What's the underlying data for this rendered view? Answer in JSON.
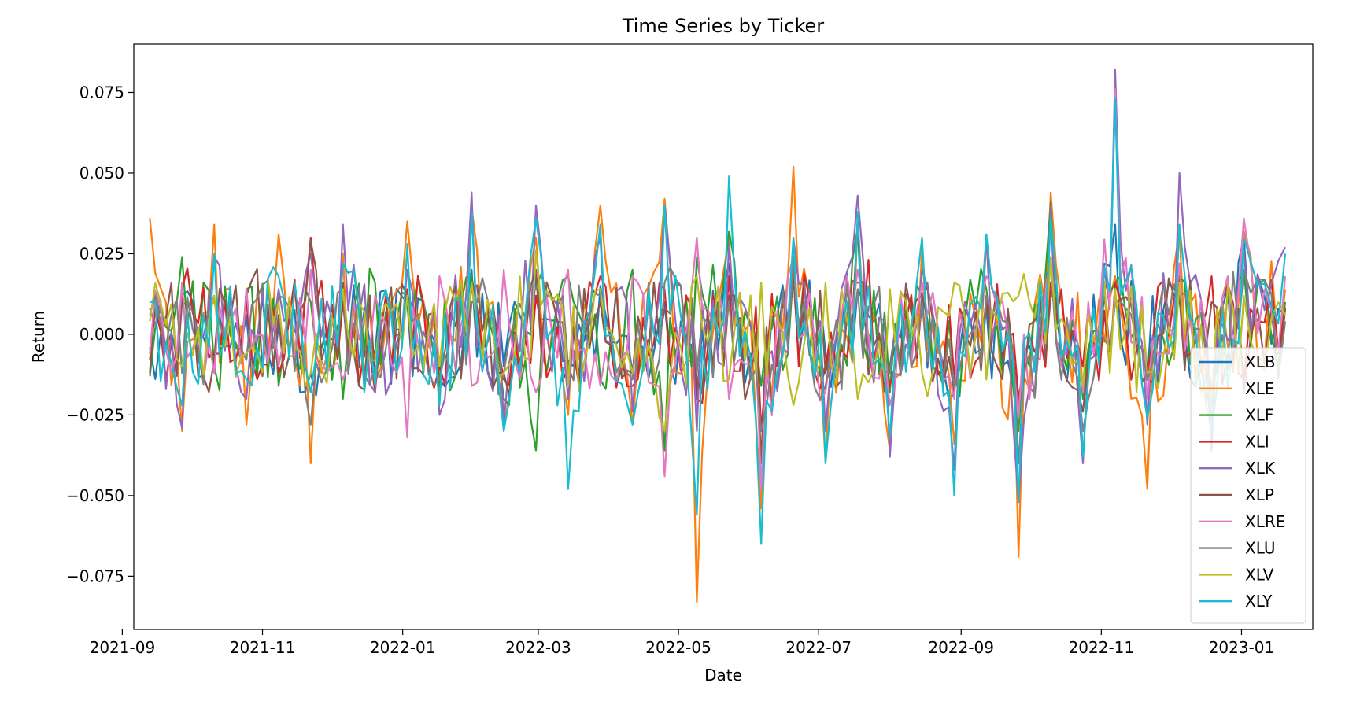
{
  "chart_data": {
    "type": "line",
    "title": "Time Series by Ticker",
    "xlabel": "Date",
    "ylabel": "Return",
    "xlim": [
      "2021-09-06",
      "2023-02-01"
    ],
    "ylim": [
      -0.0915,
      0.09
    ],
    "x_ticks": [
      "2021-09-01",
      "2021-11-01",
      "2022-01-01",
      "2022-03-01",
      "2022-05-01",
      "2022-07-01",
      "2022-09-01",
      "2022-11-01",
      "2023-01-01"
    ],
    "x_tick_labels": [
      "2021-09",
      "2021-11",
      "2022-01",
      "2022-03",
      "2022-05",
      "2022-07",
      "2022-09",
      "2022-11",
      "2023-01"
    ],
    "y_ticks": [
      -0.075,
      -0.05,
      -0.025,
      0.0,
      0.025,
      0.05,
      0.075
    ],
    "y_tick_labels": [
      "−0.075",
      "−0.050",
      "−0.025",
      "0.000",
      "0.025",
      "0.050",
      "0.075"
    ],
    "grid": false,
    "legend_position": "center-right",
    "x": [
      "2021-09-13",
      "2021-09-27",
      "2021-10-11",
      "2021-10-25",
      "2021-11-08",
      "2021-11-22",
      "2021-12-06",
      "2021-12-20",
      "2022-01-03",
      "2022-01-17",
      "2022-01-31",
      "2022-02-14",
      "2022-02-28",
      "2022-03-14",
      "2022-03-28",
      "2022-04-11",
      "2022-04-25",
      "2022-05-09",
      "2022-05-23",
      "2022-06-06",
      "2022-06-20",
      "2022-07-04",
      "2022-07-18",
      "2022-08-01",
      "2022-08-15",
      "2022-08-29",
      "2022-09-12",
      "2022-09-26",
      "2022-10-10",
      "2022-10-24",
      "2022-11-07",
      "2022-11-21",
      "2022-12-05",
      "2022-12-19",
      "2023-01-02",
      "2023-01-20"
    ],
    "series": [
      {
        "name": "XLB",
        "color": "#1f77b4",
        "values": [
          -0.004,
          0.012,
          -0.008,
          0.006,
          0.003,
          -0.012,
          0.015,
          -0.006,
          0.01,
          -0.014,
          0.02,
          -0.01,
          0.018,
          -0.008,
          0.015,
          -0.012,
          0.01,
          -0.02,
          0.022,
          -0.03,
          0.018,
          -0.006,
          0.014,
          -0.01,
          0.012,
          -0.018,
          0.008,
          -0.022,
          0.016,
          -0.01,
          0.034,
          -0.014,
          0.01,
          -0.016,
          0.03,
          0.006
        ]
      },
      {
        "name": "XLE",
        "color": "#ff7f0e",
        "values": [
          0.036,
          -0.03,
          0.034,
          -0.028,
          0.031,
          -0.04,
          0.025,
          -0.015,
          0.035,
          -0.02,
          0.039,
          -0.03,
          0.03,
          -0.025,
          0.04,
          -0.028,
          0.042,
          -0.083,
          0.03,
          -0.054,
          0.052,
          -0.04,
          0.036,
          -0.036,
          0.028,
          -0.034,
          0.03,
          -0.069,
          0.044,
          -0.02,
          0.018,
          -0.048,
          0.032,
          -0.03,
          0.032,
          0.014
        ]
      },
      {
        "name": "XLF",
        "color": "#2ca02c",
        "values": [
          -0.013,
          0.024,
          -0.01,
          0.014,
          -0.016,
          0.01,
          -0.02,
          0.016,
          0.012,
          -0.016,
          0.018,
          -0.02,
          -0.036,
          0.018,
          -0.014,
          0.02,
          -0.036,
          0.024,
          0.032,
          -0.016,
          0.02,
          -0.01,
          0.033,
          -0.018,
          0.012,
          -0.012,
          0.014,
          -0.03,
          0.041,
          -0.02,
          0.016,
          -0.012,
          0.018,
          -0.026,
          0.02,
          0.01
        ]
      },
      {
        "name": "XLI",
        "color": "#d62728",
        "values": [
          -0.008,
          0.014,
          -0.006,
          0.01,
          -0.012,
          0.03,
          0.01,
          -0.018,
          0.014,
          -0.01,
          0.016,
          -0.014,
          0.012,
          -0.01,
          0.018,
          -0.016,
          0.014,
          -0.02,
          0.018,
          -0.03,
          0.022,
          -0.01,
          0.035,
          -0.016,
          0.01,
          -0.014,
          0.012,
          -0.02,
          0.016,
          -0.01,
          0.016,
          -0.012,
          0.018,
          0.018,
          -0.014,
          0.008
        ]
      },
      {
        "name": "XLK",
        "color": "#9467bd",
        "values": [
          0.008,
          -0.029,
          0.024,
          -0.02,
          0.014,
          0.025,
          0.034,
          -0.018,
          0.02,
          -0.025,
          0.044,
          -0.028,
          0.04,
          -0.02,
          0.03,
          -0.024,
          0.04,
          -0.03,
          0.028,
          -0.04,
          0.03,
          -0.03,
          0.043,
          -0.038,
          0.02,
          -0.042,
          0.031,
          -0.052,
          0.04,
          -0.04,
          0.082,
          -0.028,
          0.05,
          -0.036,
          0.026,
          0.027
        ]
      },
      {
        "name": "XLP",
        "color": "#8c564b",
        "values": [
          -0.012,
          0.01,
          -0.008,
          0.012,
          0.006,
          0.029,
          0.016,
          -0.014,
          0.012,
          -0.01,
          0.014,
          -0.012,
          0.02,
          -0.014,
          0.01,
          -0.012,
          0.008,
          -0.014,
          0.012,
          -0.04,
          0.018,
          -0.012,
          0.016,
          -0.01,
          0.012,
          -0.018,
          0.01,
          -0.022,
          0.012,
          -0.024,
          0.01,
          -0.014,
          0.012,
          0.01,
          -0.018,
          0.008
        ]
      },
      {
        "name": "XLRE",
        "color": "#e377c2",
        "values": [
          -0.006,
          0.016,
          -0.012,
          0.014,
          -0.01,
          0.02,
          -0.014,
          0.012,
          -0.032,
          0.018,
          -0.016,
          0.02,
          -0.018,
          0.02,
          -0.016,
          0.018,
          -0.044,
          0.03,
          -0.02,
          -0.048,
          0.024,
          -0.018,
          0.02,
          -0.022,
          0.016,
          -0.02,
          0.018,
          -0.026,
          0.024,
          -0.018,
          0.076,
          -0.02,
          0.022,
          -0.024,
          0.036,
          0.018
        ]
      },
      {
        "name": "XLU",
        "color": "#7f7f7f",
        "values": [
          0.006,
          -0.012,
          0.01,
          -0.008,
          0.012,
          -0.028,
          0.014,
          -0.01,
          0.012,
          -0.014,
          0.01,
          -0.012,
          0.014,
          -0.01,
          0.012,
          -0.014,
          0.016,
          -0.012,
          0.01,
          -0.03,
          0.024,
          -0.016,
          0.014,
          -0.012,
          0.01,
          -0.016,
          0.012,
          -0.04,
          0.022,
          -0.03,
          0.01,
          -0.014,
          0.012,
          -0.018,
          0.02,
          0.004
        ]
      },
      {
        "name": "XLV",
        "color": "#bcbd22",
        "values": [
          0.004,
          -0.01,
          0.012,
          -0.006,
          0.01,
          -0.012,
          0.014,
          -0.008,
          0.012,
          -0.01,
          0.016,
          -0.012,
          0.026,
          -0.016,
          0.014,
          -0.012,
          -0.03,
          0.018,
          -0.014,
          0.016,
          -0.022,
          0.016,
          -0.02,
          0.014,
          -0.012,
          0.016,
          -0.014,
          0.012,
          0.024,
          -0.016,
          0.014,
          -0.012,
          0.016,
          -0.02,
          0.012,
          0.006
        ]
      },
      {
        "name": "XLY",
        "color": "#17becf",
        "values": [
          0.01,
          -0.022,
          0.025,
          -0.014,
          0.018,
          -0.018,
          0.022,
          -0.016,
          0.028,
          -0.022,
          0.038,
          -0.03,
          0.036,
          -0.048,
          0.034,
          -0.028,
          0.04,
          -0.056,
          0.049,
          -0.065,
          0.03,
          -0.04,
          0.038,
          -0.032,
          0.03,
          -0.05,
          0.031,
          -0.052,
          0.036,
          -0.038,
          0.073,
          -0.026,
          0.034,
          -0.03,
          0.03,
          0.025
        ]
      }
    ]
  }
}
